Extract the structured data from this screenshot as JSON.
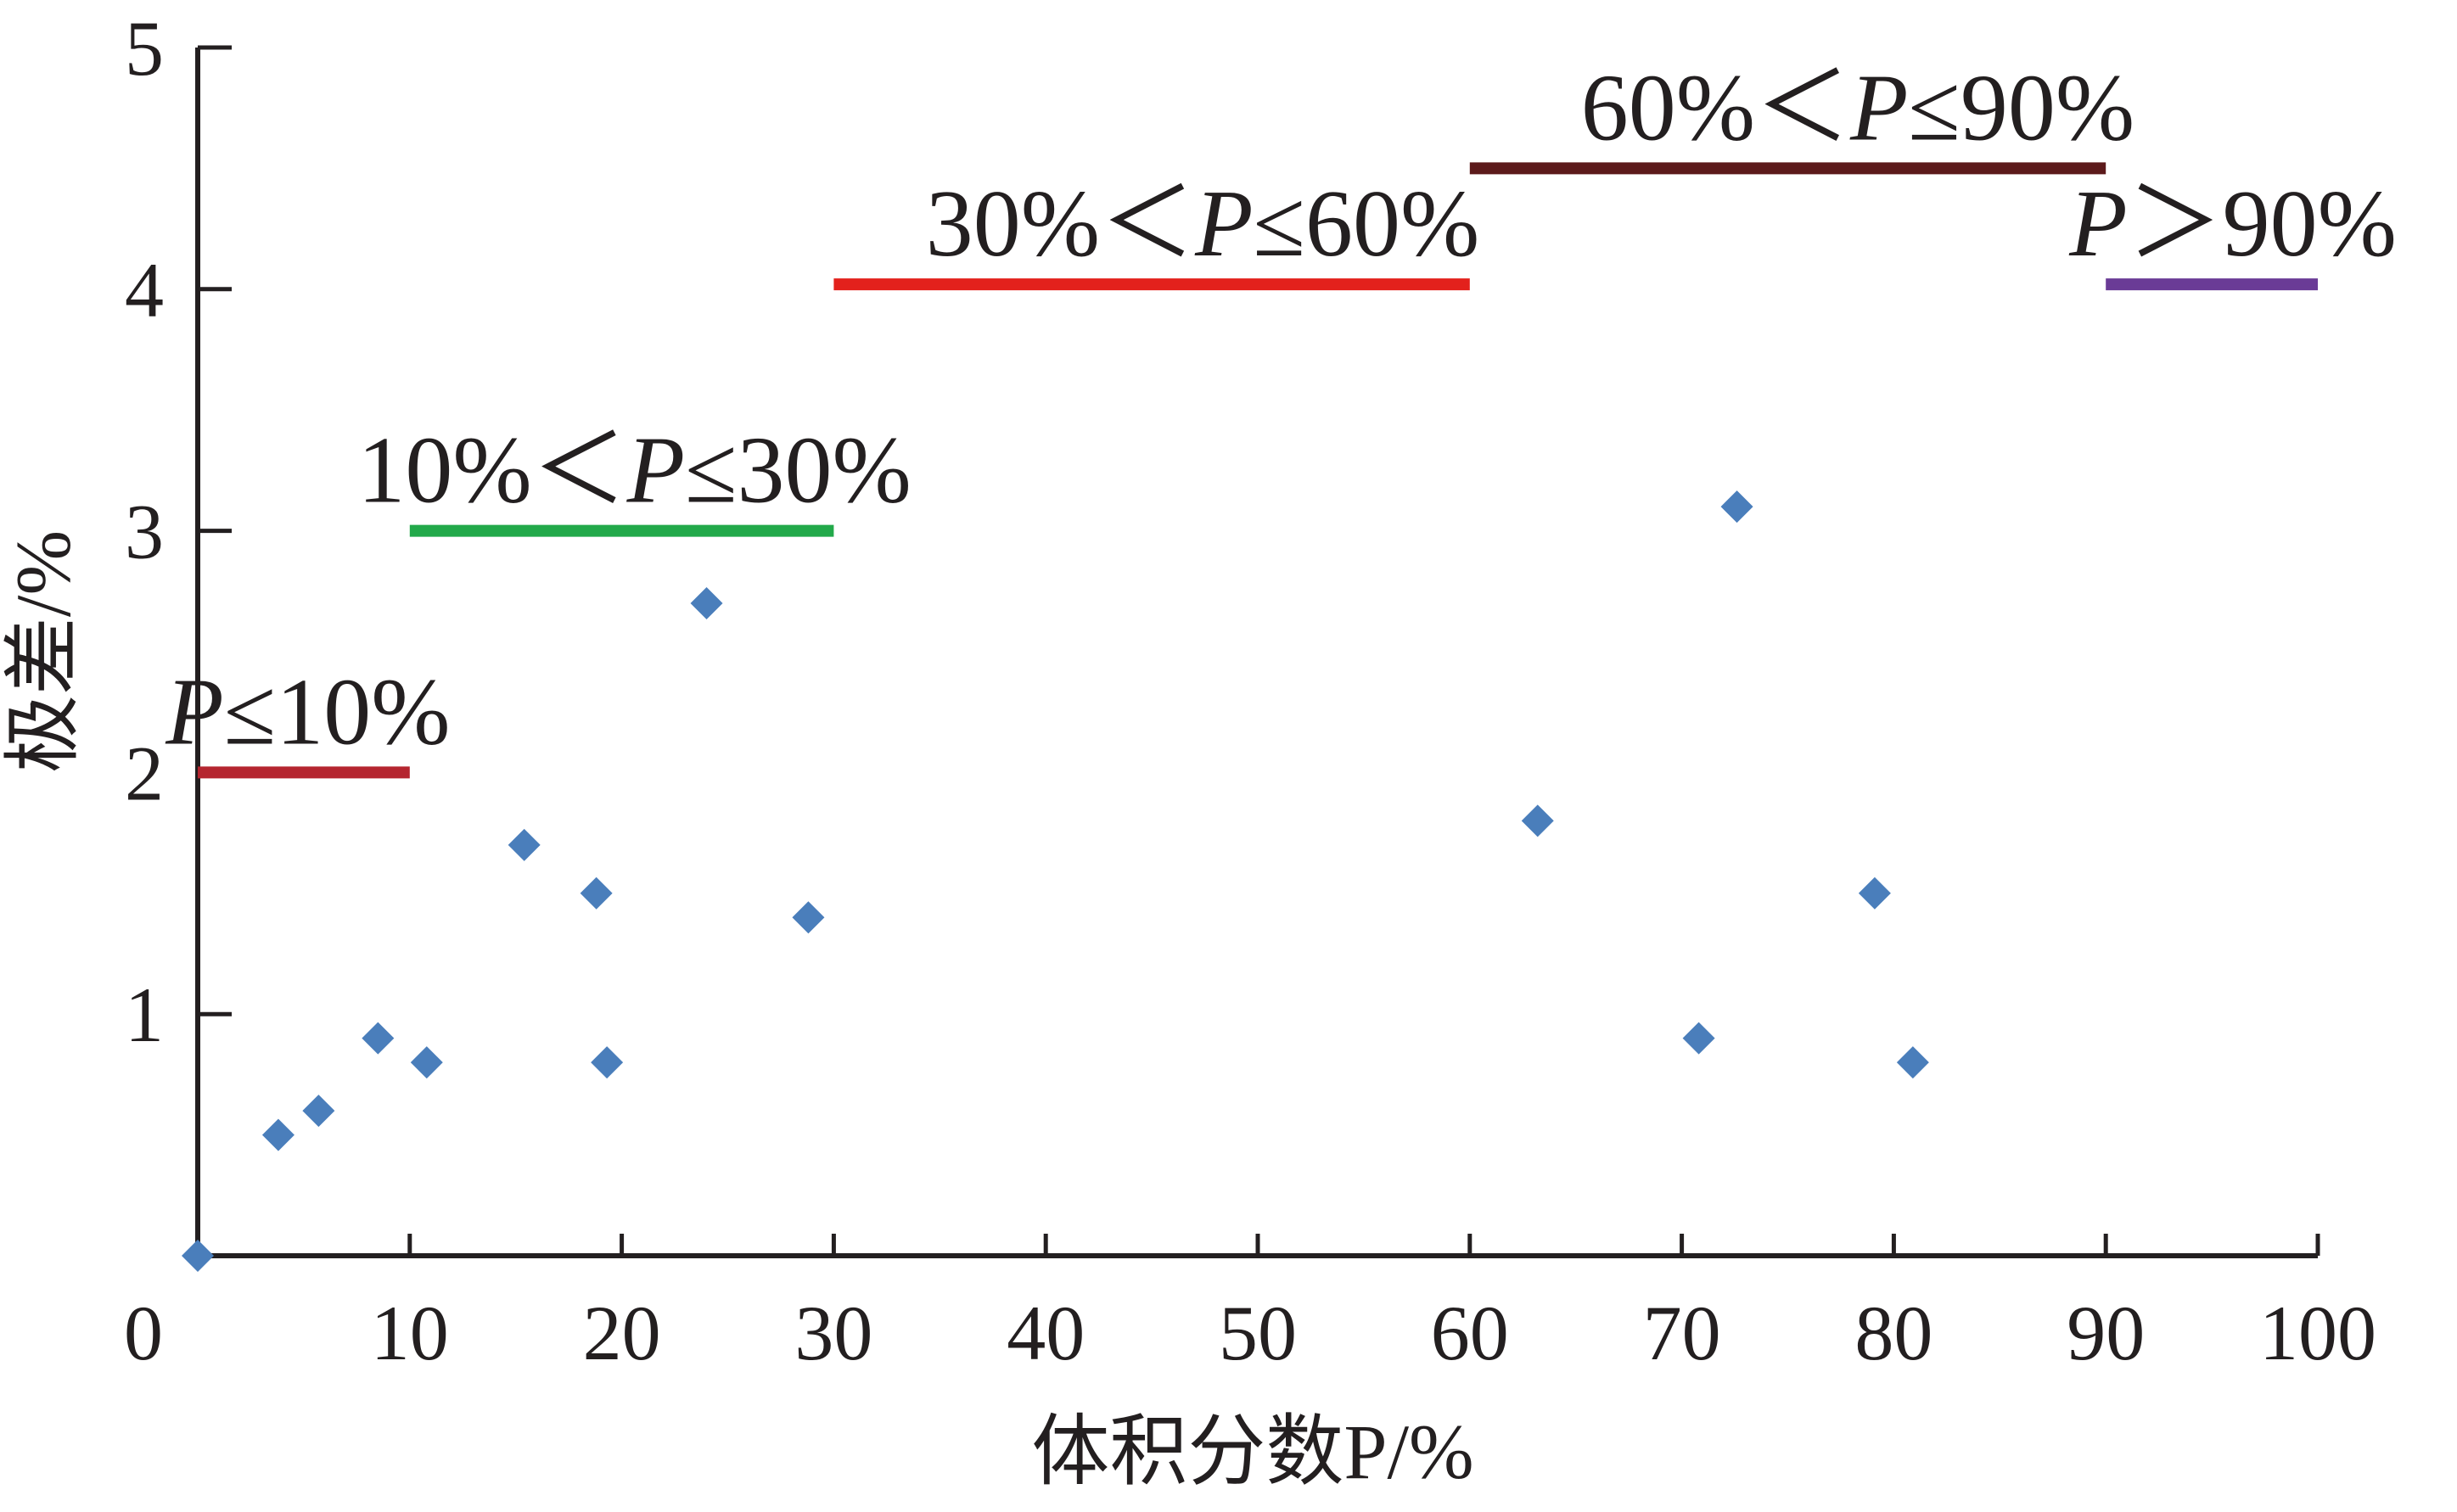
{
  "chart_data": {
    "type": "scatter",
    "xlabel": "体积分数P/%",
    "ylabel": "极差/%",
    "xlim": [
      0,
      100
    ],
    "ylim": [
      0,
      5
    ],
    "x_ticks": [
      0,
      10,
      20,
      30,
      40,
      50,
      60,
      70,
      80,
      90,
      100
    ],
    "y_ticks": [
      1,
      2,
      3,
      4,
      5
    ],
    "grid": false,
    "marker": "diamond",
    "marker_color": "#4a7ebb",
    "points": [
      {
        "x": 0,
        "y": 0
      },
      {
        "x": 3.8,
        "y": 0.5
      },
      {
        "x": 5.7,
        "y": 0.6
      },
      {
        "x": 8.5,
        "y": 0.9
      },
      {
        "x": 10.8,
        "y": 0.8
      },
      {
        "x": 15.4,
        "y": 1.7
      },
      {
        "x": 18.8,
        "y": 1.5
      },
      {
        "x": 19.3,
        "y": 0.8
      },
      {
        "x": 24.0,
        "y": 2.7
      },
      {
        "x": 28.8,
        "y": 1.4
      },
      {
        "x": 63.2,
        "y": 1.8
      },
      {
        "x": 70.8,
        "y": 0.9
      },
      {
        "x": 72.6,
        "y": 3.1
      },
      {
        "x": 79.1,
        "y": 1.5
      },
      {
        "x": 80.9,
        "y": 0.8
      }
    ],
    "thresholds": [
      {
        "x_start": 0,
        "x_end": 10,
        "y": 2,
        "color": "#b5252f",
        "label_parts": [
          {
            "t": "P",
            "italic": true
          },
          {
            "t": "≤10%",
            "italic": false
          }
        ]
      },
      {
        "x_start": 10,
        "x_end": 30,
        "y": 3,
        "color": "#22a94a",
        "label_parts": [
          {
            "t": "10%＜",
            "italic": false
          },
          {
            "t": "P",
            "italic": true
          },
          {
            "t": "≤30%",
            "italic": false
          }
        ]
      },
      {
        "x_start": 30,
        "x_end": 60,
        "y": 4.02,
        "color": "#e3211c",
        "label_parts": [
          {
            "t": "30%＜",
            "italic": false
          },
          {
            "t": "P",
            "italic": true
          },
          {
            "t": "≤60%",
            "italic": false
          }
        ]
      },
      {
        "x_start": 60,
        "x_end": 90,
        "y": 4.5,
        "color": "#5c1a1b",
        "label_parts": [
          {
            "t": "60%＜",
            "italic": false
          },
          {
            "t": "P",
            "italic": true
          },
          {
            "t": "≤90%",
            "italic": false
          }
        ]
      },
      {
        "x_start": 90,
        "x_end": 100,
        "y": 4.02,
        "color": "#6a3b96",
        "label_parts": [
          {
            "t": "P",
            "italic": true
          },
          {
            "t": "＞90%",
            "italic": false
          }
        ]
      }
    ]
  }
}
